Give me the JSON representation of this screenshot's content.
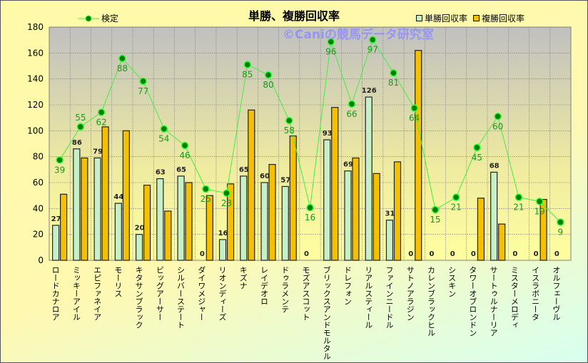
{
  "chart_data": {
    "type": "bar",
    "title": "単勝、複勝回収率",
    "watermark": "©Caniの競馬データ研究室",
    "xlabel": "",
    "ylabel": "",
    "ylim": [
      0,
      180
    ],
    "yticks": [
      0,
      20,
      40,
      60,
      80,
      100,
      120,
      140,
      160,
      180
    ],
    "grid": true,
    "categories": [
      "ロードカナロア",
      "ミッキーアイル",
      "エピファネイア",
      "モーリス",
      "キタサンブラック",
      "ビッグアーサー",
      "シルバーステート",
      "ダイワメジャー",
      "リオンディーズ",
      "キズナ",
      "レイデオロ",
      "ドゥラメンテ",
      "モズアスコット",
      "ブリックスアンドモルタル",
      "ドレフォン",
      "リアルスティール",
      "ファインニードル",
      "サトノアラジン",
      "カレンブラックヒル",
      "シスキン",
      "タワーオブロンドン",
      "サートゥルナーリア",
      "ミスターメロディ",
      "イスラボニータ",
      "オルフェーヴル"
    ],
    "series": [
      {
        "name": "単勝回収率",
        "type": "bar",
        "color": "#c8f0c8",
        "values": [
          27,
          86,
          79,
          44,
          20,
          63,
          65,
          0,
          16,
          65,
          60,
          57,
          0,
          93,
          69,
          126,
          31,
          0,
          0,
          0,
          0,
          68,
          0,
          0,
          0
        ]
      },
      {
        "name": "複勝回収率",
        "type": "bar",
        "color": "#f5c000",
        "values": [
          51,
          79,
          103,
          100,
          58,
          38,
          60,
          50,
          59,
          116,
          74,
          96,
          0,
          118,
          79,
          67,
          76,
          162,
          0,
          0,
          48,
          28,
          0,
          47,
          0
        ]
      },
      {
        "name": "検定",
        "type": "line",
        "color": "#00a000",
        "secondary_axis_range": [
          -9.4,
          103.1
        ],
        "values": [
          39,
          55,
          62,
          88,
          77,
          54,
          46,
          25,
          23,
          85,
          80,
          58,
          16,
          96,
          66,
          97,
          81,
          64,
          15,
          21,
          45,
          60,
          21,
          19,
          9
        ]
      }
    ],
    "legend": {
      "line": "検定",
      "bar1": "単勝回収率",
      "bar2": "複勝回収率"
    }
  }
}
